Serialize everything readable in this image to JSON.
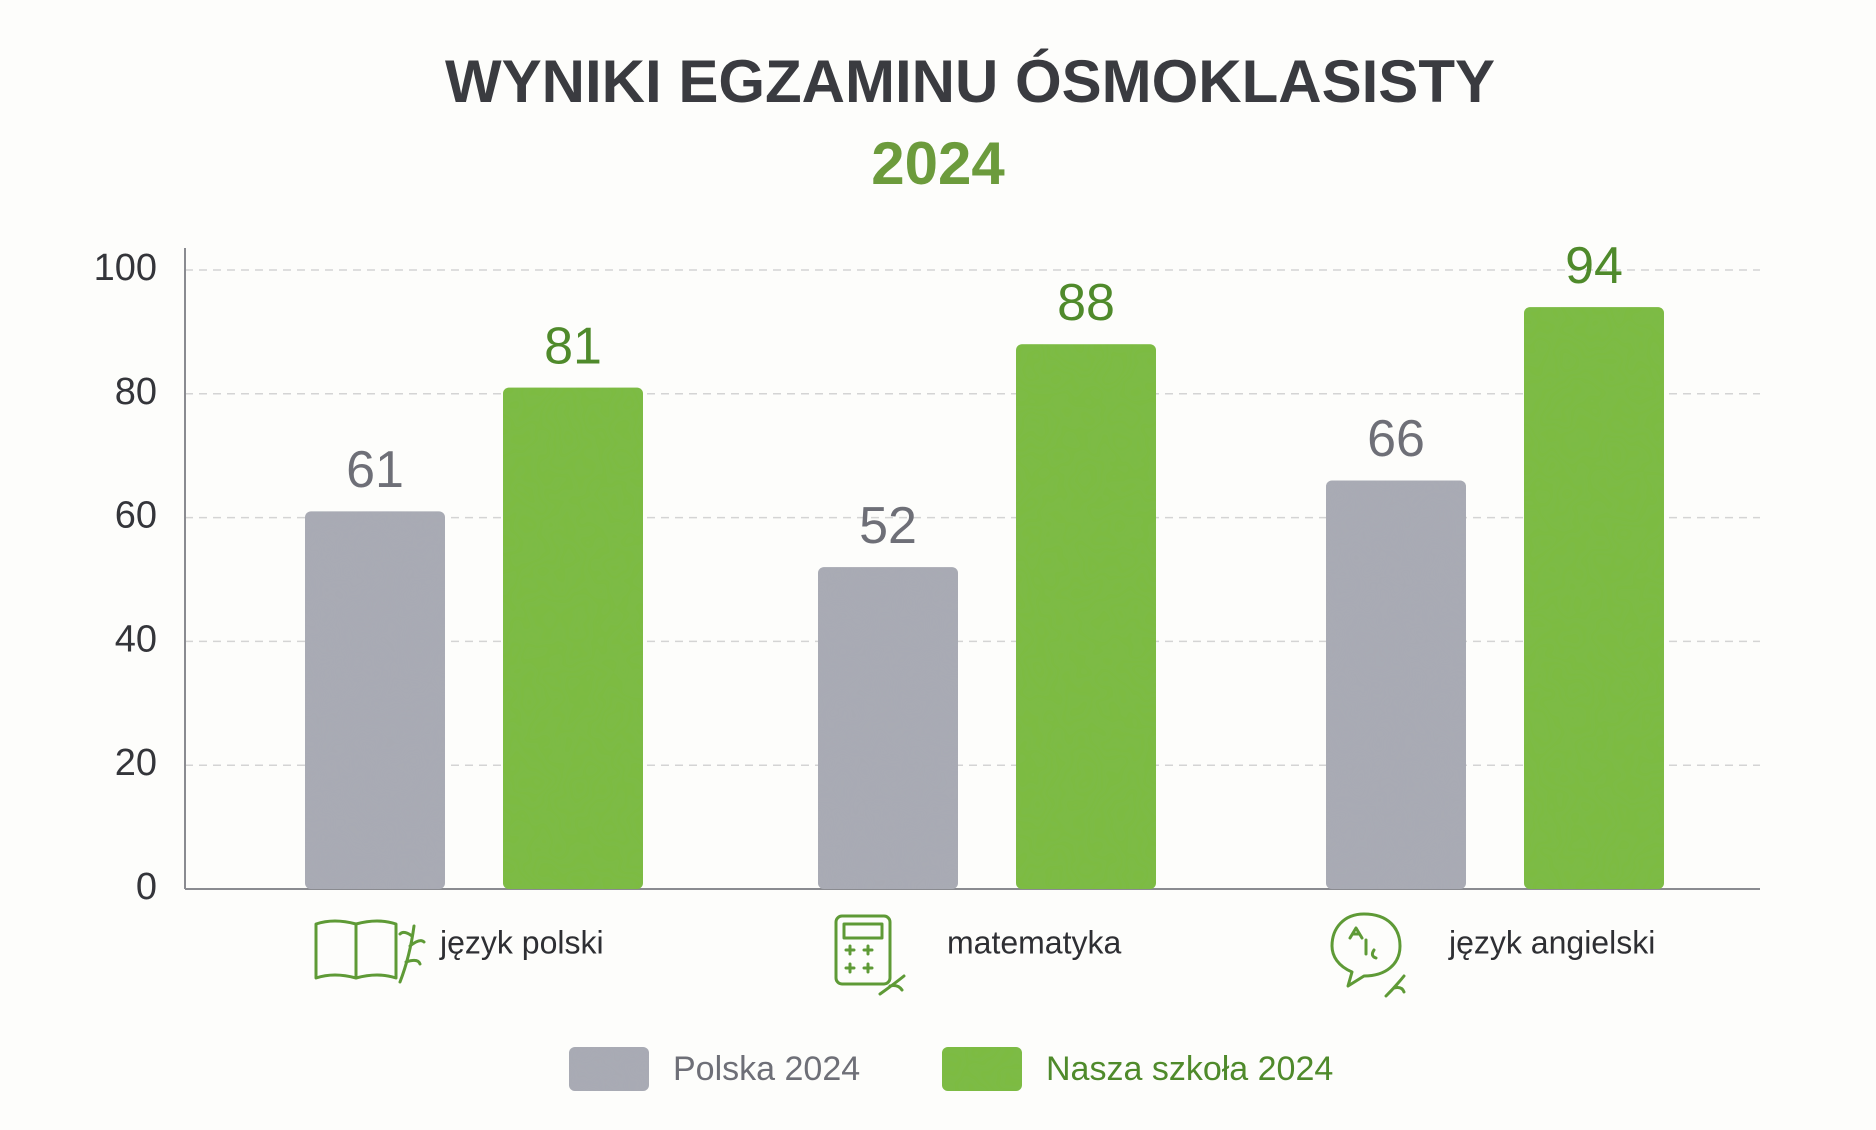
{
  "chart_data": {
    "type": "bar",
    "title": "WYNIKI EGZAMINU ÓSMOKLASISTY",
    "subtitle": "2024",
    "categories": [
      "język polski",
      "matematyka",
      "język angielski"
    ],
    "series": [
      {
        "name": "Polska 2024",
        "color": "#a9abb4",
        "values": [
          61,
          52,
          66
        ]
      },
      {
        "name": "Nasza szkoła 2024",
        "color": "#7dbb45",
        "values": [
          81,
          88,
          94
        ]
      }
    ],
    "ylim": [
      0,
      100
    ],
    "yticks": [
      0,
      20,
      40,
      60,
      80,
      100
    ],
    "grid": true,
    "legend": "bottom"
  }
}
